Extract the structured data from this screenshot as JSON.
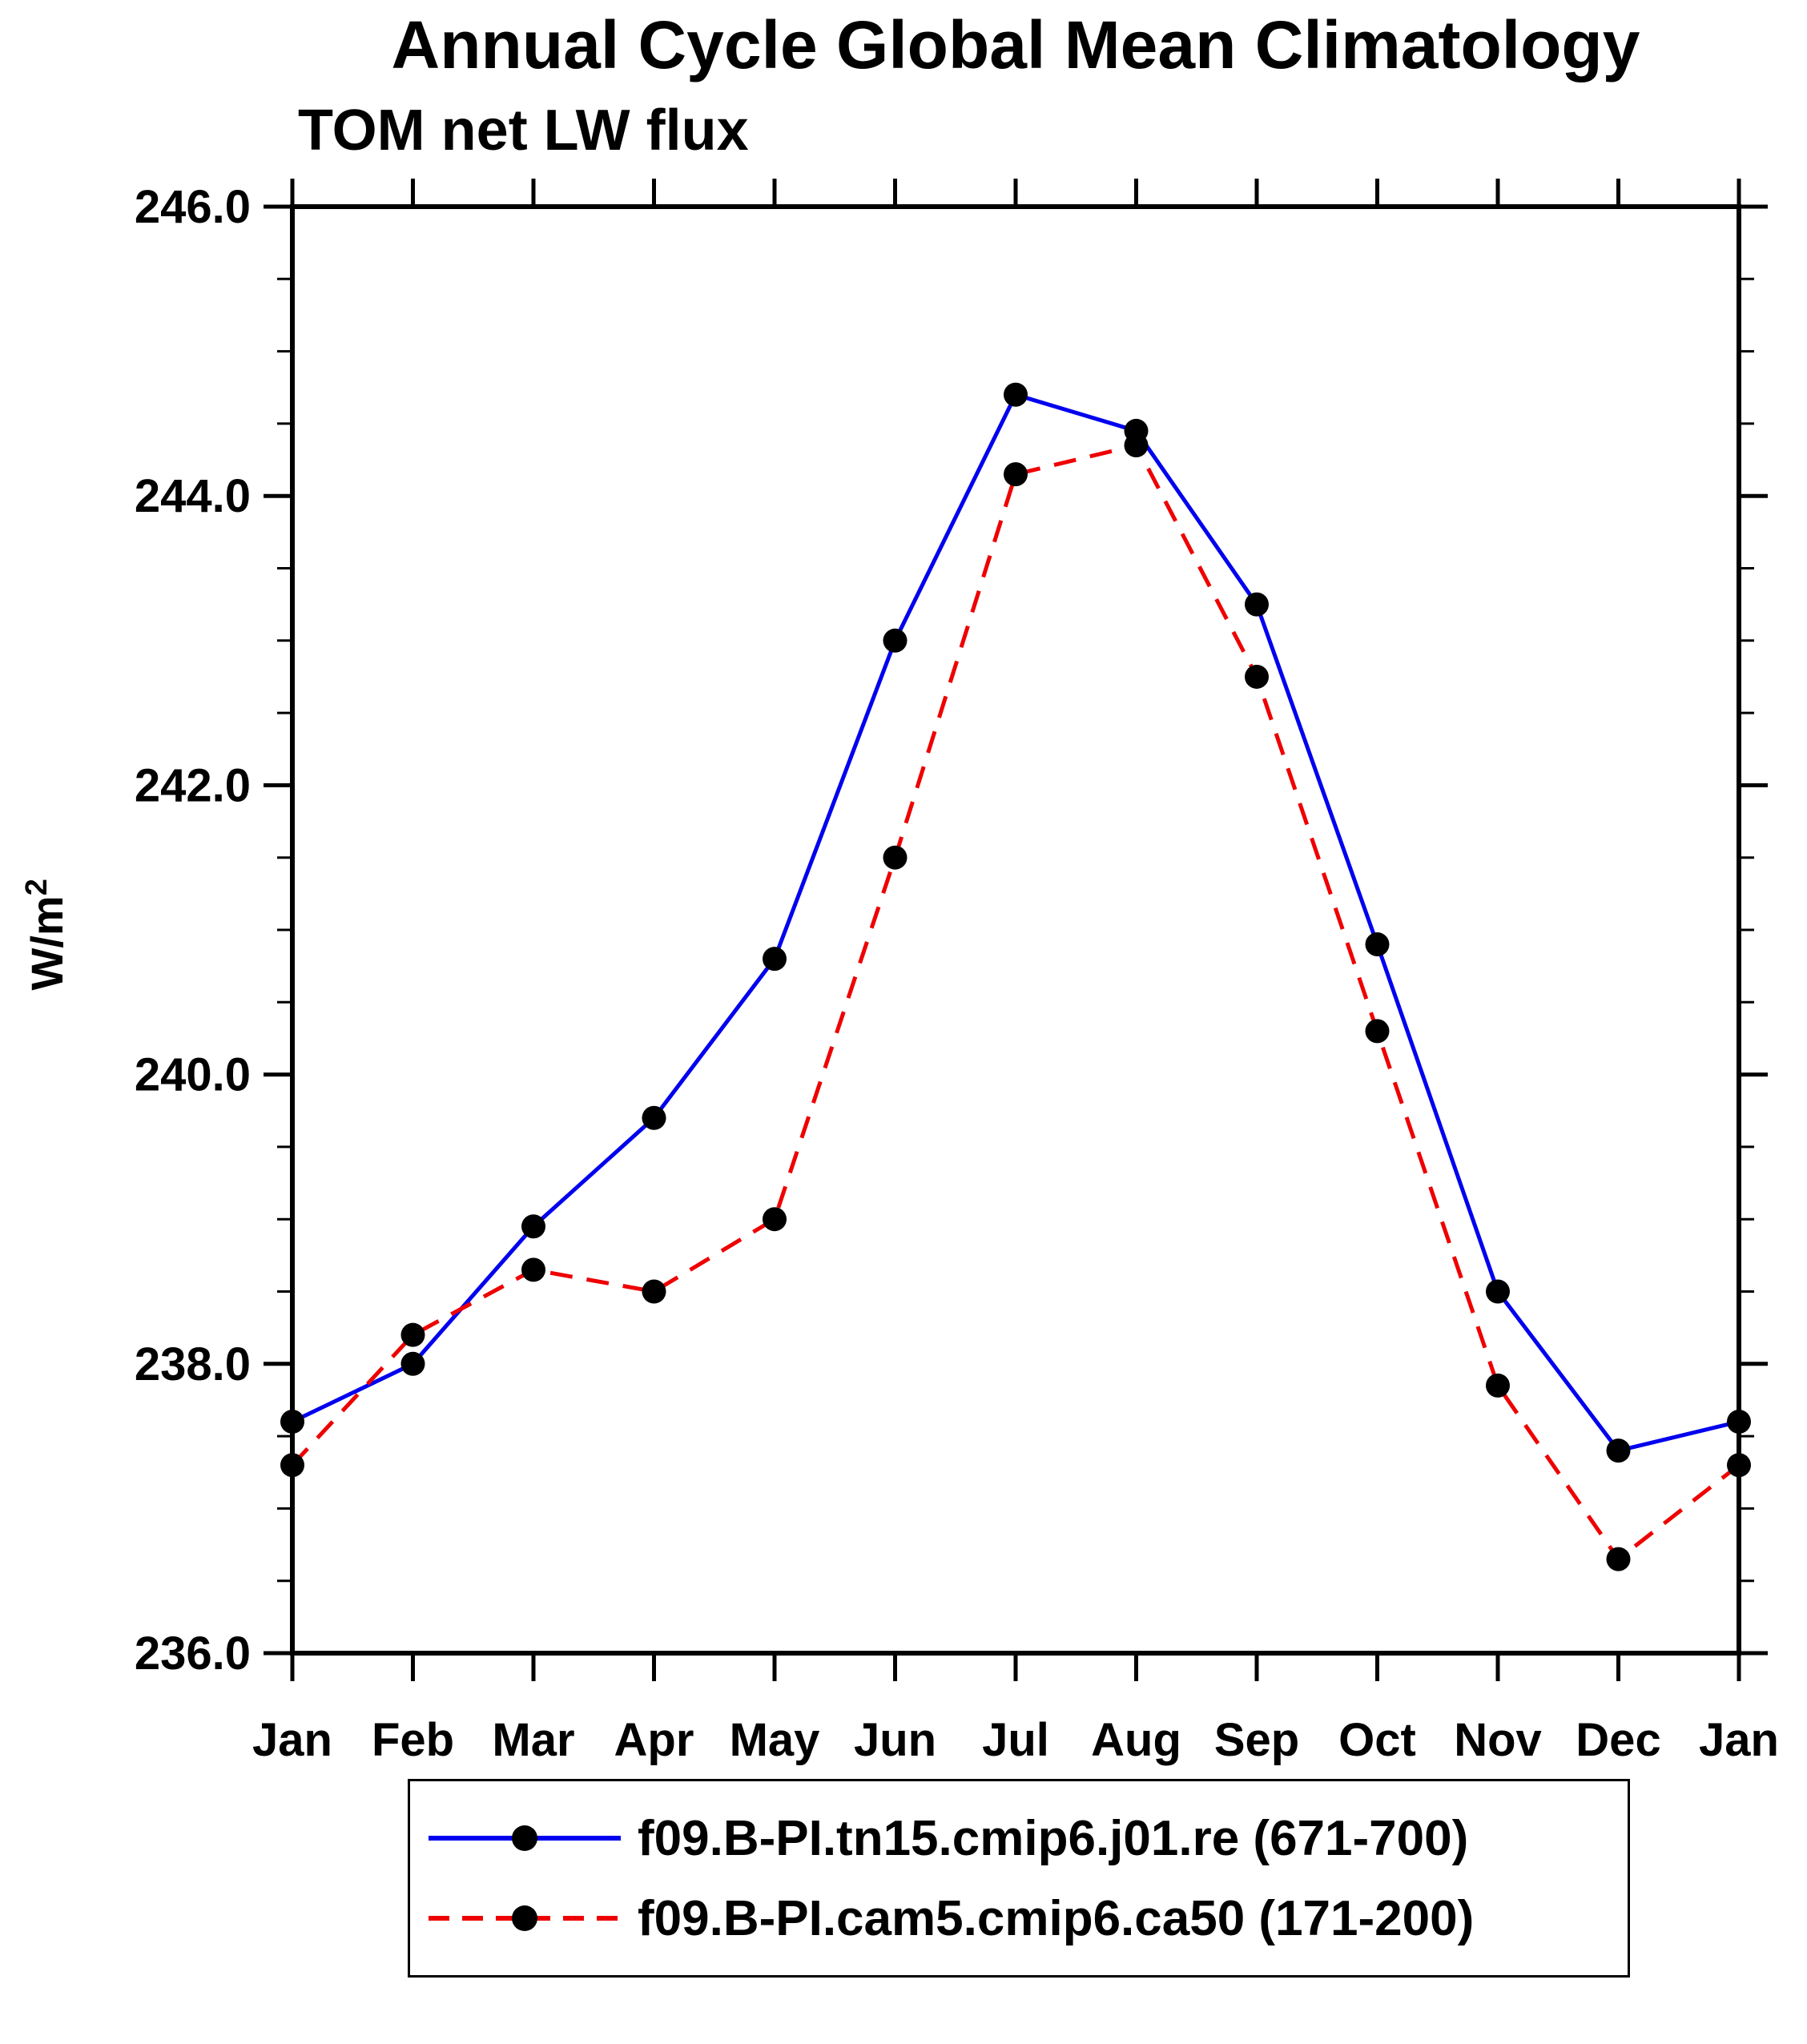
{
  "chart_data": {
    "type": "line",
    "title": "Annual Cycle Global Mean Climatology",
    "subtitle": "TOM net LW flux",
    "xlabel": "",
    "ylabel": "W/m²",
    "ylabel_base": "W/m",
    "ylabel_exp": "2",
    "categories": [
      "Jan",
      "Feb",
      "Mar",
      "Apr",
      "May",
      "Jun",
      "Jul",
      "Aug",
      "Sep",
      "Oct",
      "Nov",
      "Dec",
      "Jan"
    ],
    "ylim": [
      236.0,
      246.0
    ],
    "ytick_major": 2.0,
    "ytick_minor": 0.5,
    "ytick_labels": [
      "236.0",
      "238.0",
      "240.0",
      "242.0",
      "244.0",
      "246.0"
    ],
    "grid": false,
    "legend_position": "bottom",
    "marker_color": "#000000",
    "axis_color": "#000000",
    "series": [
      {
        "name": "f09.B-PI.tn15.cmip6.j01.re (671-700)",
        "color": "#0000ee",
        "style": "solid",
        "dash": "",
        "values": [
          237.6,
          238.0,
          238.95,
          239.7,
          240.8,
          243.0,
          244.7,
          244.45,
          243.25,
          240.9,
          238.5,
          237.4,
          237.6
        ]
      },
      {
        "name": "f09.B-PI.cam5.cmip6.ca50 (171-200)",
        "color": "#ee0000",
        "style": "dashed",
        "dash": "28 18",
        "values": [
          237.3,
          238.2,
          238.65,
          238.5,
          239.0,
          241.5,
          244.15,
          244.35,
          242.75,
          240.3,
          237.85,
          236.65,
          237.3
        ]
      }
    ]
  }
}
